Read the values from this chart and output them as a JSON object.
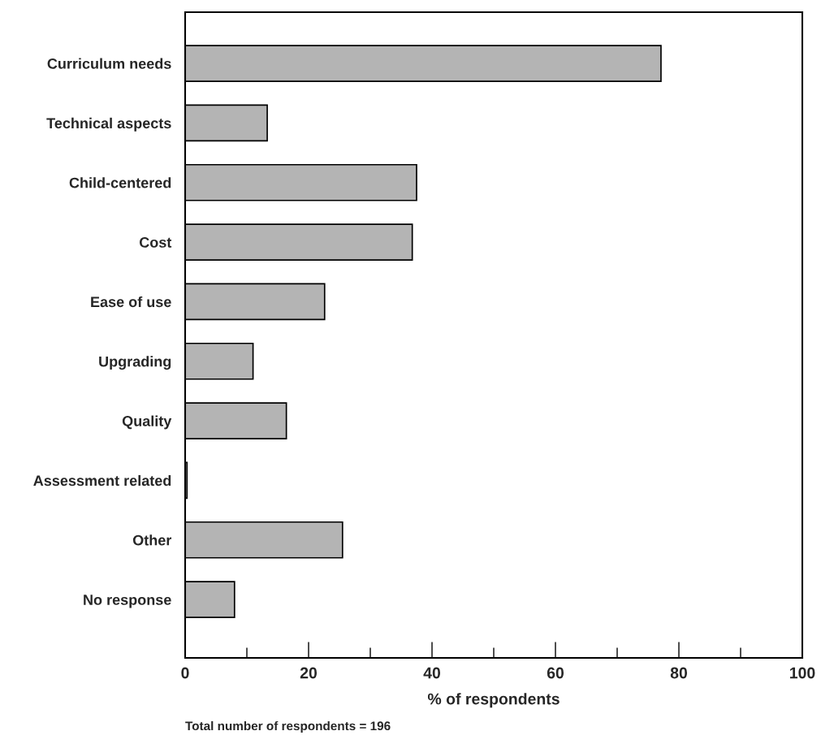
{
  "chart_data": {
    "type": "bar",
    "orientation": "horizontal",
    "categories": [
      "Curriculum needs",
      "Technical aspects",
      "Child-centered",
      "Cost",
      "Ease of use",
      "Upgrading",
      "Quality",
      "Assessment related",
      "Other",
      "No response"
    ],
    "values": [
      77.1,
      13.3,
      37.5,
      36.8,
      22.6,
      11.0,
      16.4,
      0.3,
      25.5,
      8.0
    ],
    "color": "#b4b4b4",
    "xlabel": "% of respondents",
    "xlim": [
      0,
      100
    ],
    "xticks": [
      0,
      {
        "value": 10,
        "label": null
      },
      20,
      {
        "value": 30,
        "label": null
      },
      40,
      {
        "value": 50,
        "label": null
      },
      60,
      {
        "value": 70,
        "label": null
      },
      80,
      {
        "value": 90,
        "label": null
      },
      100
    ],
    "grid": false,
    "annotations": [
      "Total number of respondents = 196"
    ]
  }
}
